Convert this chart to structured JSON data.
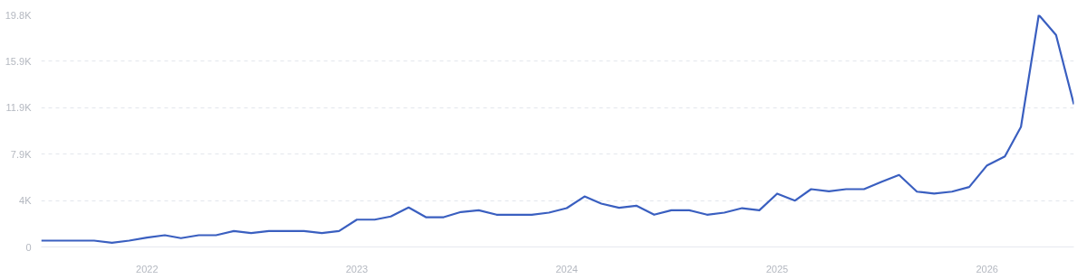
{
  "chart_data": {
    "type": "line",
    "x": [
      "2021-07",
      "2021-08",
      "2021-09",
      "2021-10",
      "2021-11",
      "2021-12",
      "2022-01",
      "2022-02",
      "2022-03",
      "2022-04",
      "2022-05",
      "2022-06",
      "2022-07",
      "2022-08",
      "2022-09",
      "2022-10",
      "2022-11",
      "2022-12",
      "2023-01",
      "2023-02",
      "2023-03",
      "2023-04",
      "2023-05",
      "2023-06",
      "2023-07",
      "2023-08",
      "2023-09",
      "2023-10",
      "2023-11",
      "2023-12",
      "2024-01",
      "2024-02",
      "2024-03",
      "2024-04",
      "2024-05",
      "2024-06",
      "2024-07",
      "2024-08",
      "2024-09",
      "2024-10",
      "2024-11",
      "2024-12",
      "2025-01",
      "2025-02",
      "2025-03",
      "2025-04",
      "2025-05",
      "2025-06",
      "2025-07",
      "2025-08",
      "2025-09",
      "2025-10",
      "2025-11",
      "2025-12",
      "2026-01",
      "2026-02",
      "2026-03",
      "2026-04",
      "2026-05",
      "2026-06"
    ],
    "series": [
      {
        "color": "#3a5fc0",
        "values": [
          540,
          540,
          540,
          540,
          360,
          540,
          800,
          1000,
          750,
          1000,
          1000,
          1360,
          1180,
          1360,
          1360,
          1360,
          1180,
          1360,
          2330,
          2330,
          2600,
          3370,
          2540,
          2540,
          2980,
          3130,
          2750,
          2750,
          2750,
          2930,
          3310,
          4310,
          3700,
          3340,
          3520,
          2750,
          3130,
          3130,
          2750,
          2930,
          3310,
          3130,
          4550,
          3950,
          4930,
          4750,
          4930,
          4930,
          5550,
          6140,
          4720,
          4550,
          4720,
          5110,
          6960,
          7730,
          10250,
          19800,
          18080,
          12170
        ]
      }
    ],
    "xlim": [
      "2021-07",
      "2026-06"
    ],
    "xticks": [
      {
        "value": "2022",
        "label": "2022"
      },
      {
        "value": "2023",
        "label": "2023"
      },
      {
        "value": "2024",
        "label": "2024"
      },
      {
        "value": "2025",
        "label": "2025"
      },
      {
        "value": "2026",
        "label": "2026"
      }
    ],
    "ylim": [
      0,
      19800
    ],
    "yticks": [
      0,
      {
        "value": 3960,
        "label": "4K"
      },
      {
        "value": 7920,
        "label": "7.9K"
      },
      {
        "value": 11880,
        "label": "11.9K"
      },
      {
        "value": 15860,
        "label": "15.9K"
      },
      {
        "value": 19800,
        "label": "19.8K"
      }
    ],
    "grid": "y",
    "marker": "none",
    "line_style": "solid"
  }
}
